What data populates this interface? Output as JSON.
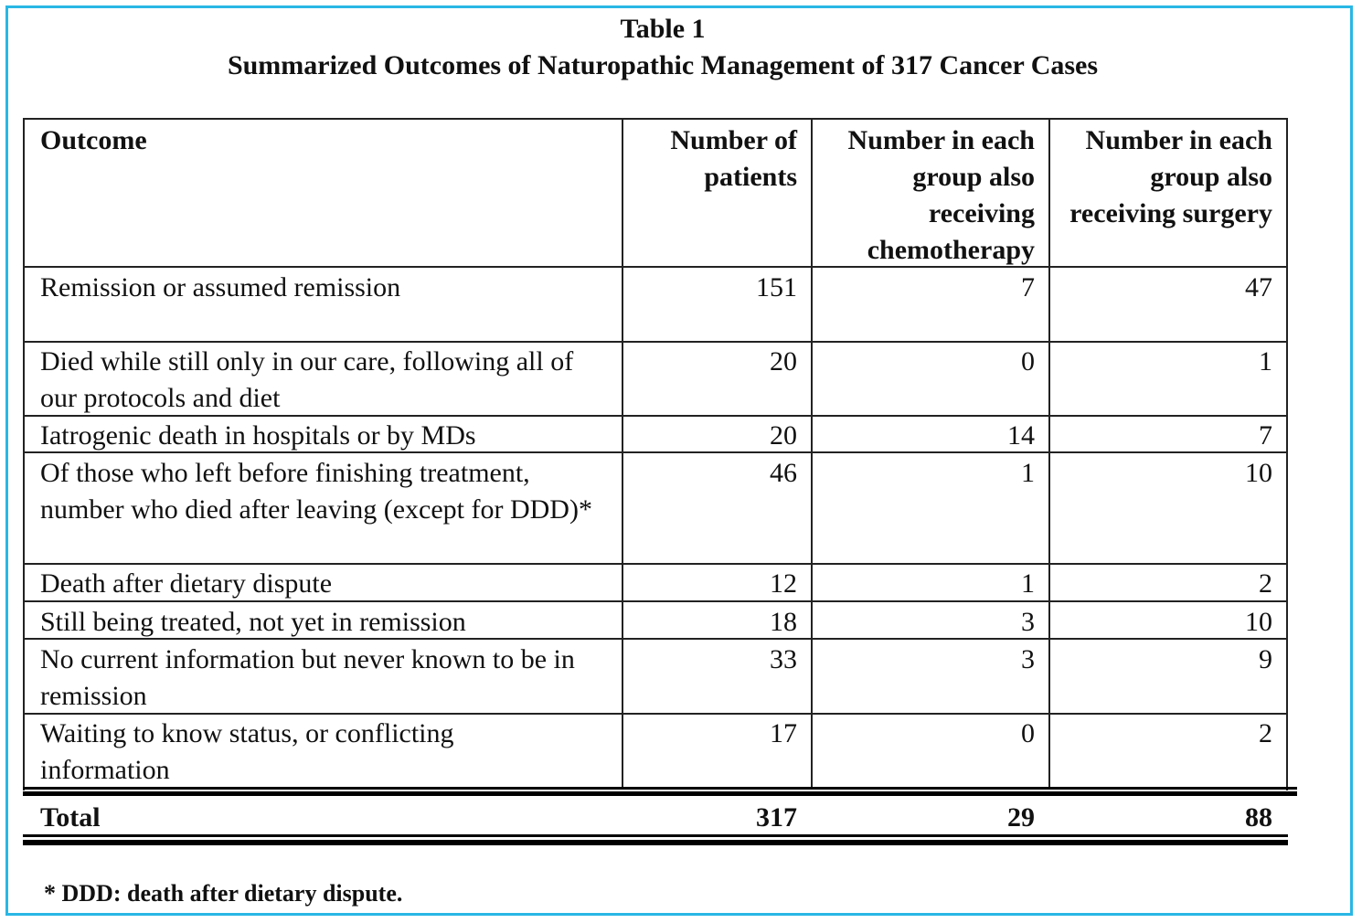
{
  "table_label": "Table 1",
  "table_title": "Summarized Outcomes of Naturopathic Management of 317 Cancer Cases",
  "columns": [
    "Outcome",
    "Number of patients",
    "Number in each group also receiving chemotherapy",
    "Number in each group also receiving surgery"
  ],
  "rows": [
    {
      "outcome": "Remission or assumed remission",
      "patients": "151",
      "chemo": "7",
      "surgery": "47"
    },
    {
      "outcome": "Died while still only in our care, following all of our protocols and diet",
      "patients": "20",
      "chemo": "0",
      "surgery": "1"
    },
    {
      "outcome": "Iatrogenic death in hospitals or by MDs",
      "patients": "20",
      "chemo": "14",
      "surgery": "7"
    },
    {
      "outcome": "Of those who left before finishing treatment, number who died after leaving (except for DDD)*",
      "patients": "46",
      "chemo": "1",
      "surgery": "10"
    },
    {
      "outcome": "Death after dietary dispute",
      "patients": "12",
      "chemo": "1",
      "surgery": "2"
    },
    {
      "outcome": "Still being treated, not yet in remission",
      "patients": "18",
      "chemo": "3",
      "surgery": "10"
    },
    {
      "outcome": "No current information but never known to be in remission",
      "patients": "33",
      "chemo": "3",
      "surgery": "9"
    },
    {
      "outcome": "Waiting to know status, or conflicting information",
      "patients": "17",
      "chemo": "0",
      "surgery": "2"
    }
  ],
  "total": {
    "label": "Total",
    "patients": "317",
    "chemo": "29",
    "surgery": "88"
  },
  "footnote": "* DDD: death after dietary dispute."
}
